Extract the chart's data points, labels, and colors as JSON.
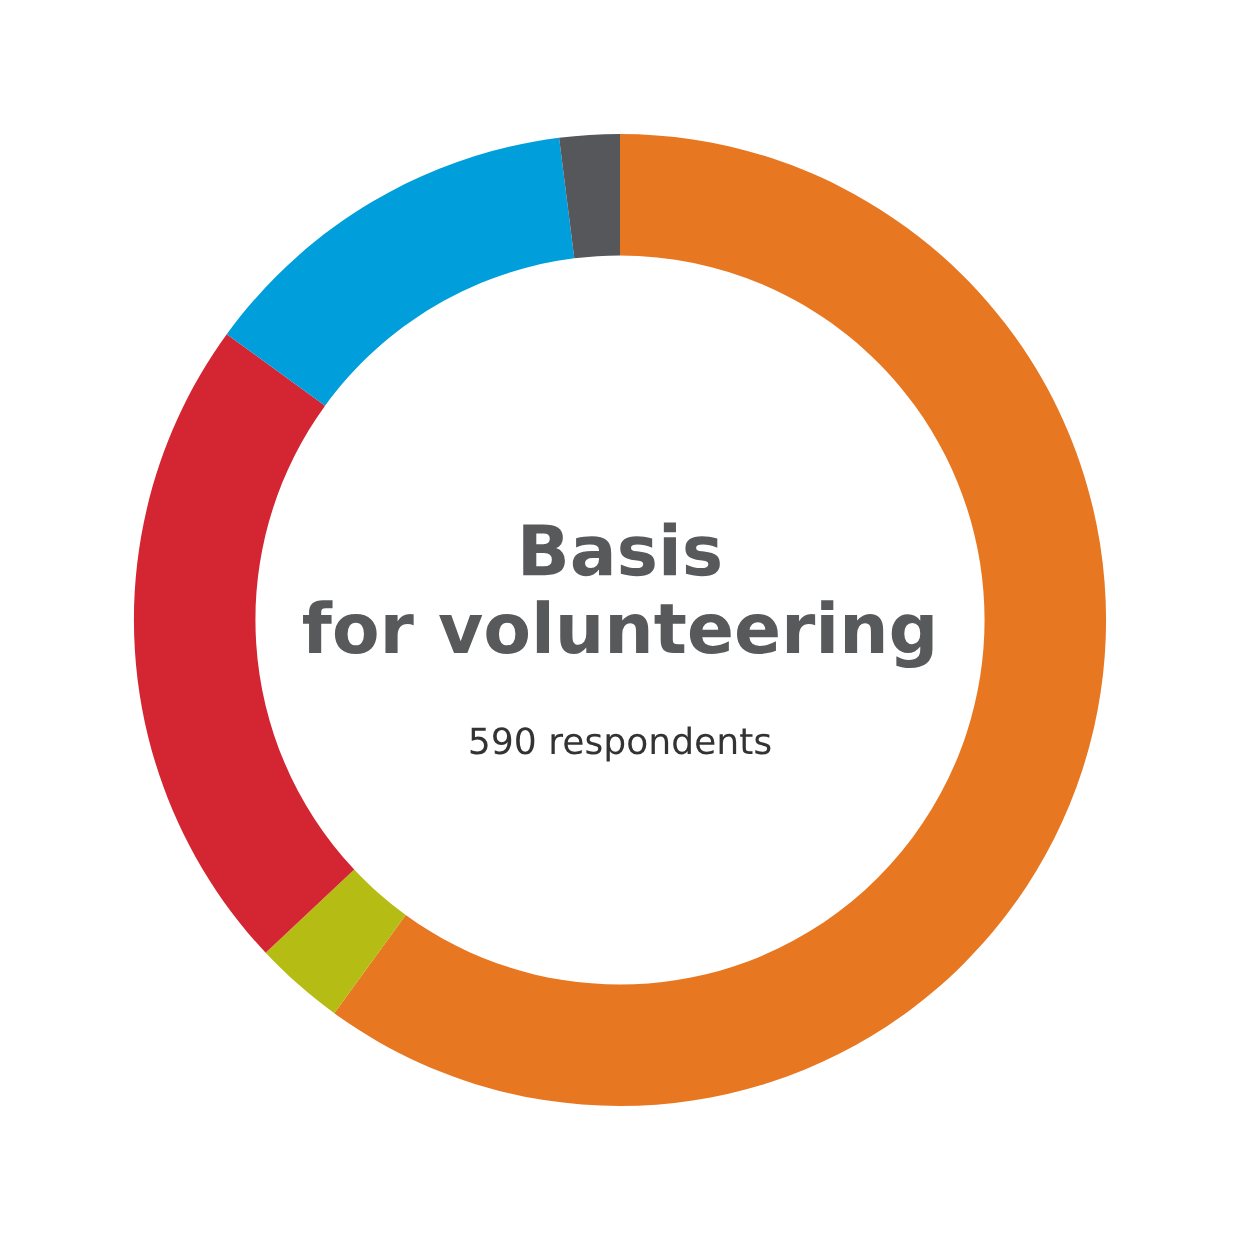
{
  "chart_data": {
    "type": "donut",
    "title": "Basis\nfor volunteering",
    "subtitle": "590 respondents",
    "categories": [
      null,
      null,
      null,
      null,
      null
    ],
    "values": [
      60,
      3,
      22,
      13,
      2
    ],
    "colors": [
      "#e87722",
      "#b5bd14",
      "#d42533",
      "#009fdb",
      "#55575a"
    ],
    "legend": false
  }
}
